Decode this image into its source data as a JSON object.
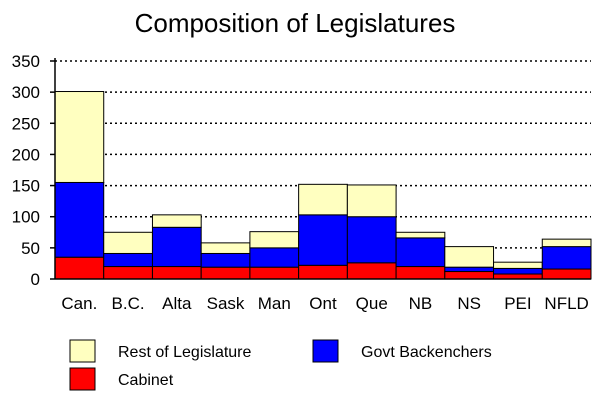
{
  "chart_data": {
    "type": "bar",
    "stacked": true,
    "title": "Composition of Legislatures",
    "xlabel": "",
    "ylabel": "",
    "categories": [
      "Can.",
      "B.C.",
      "Alta",
      "Sask",
      "Man",
      "Ont",
      "Que",
      "NB",
      "NS",
      "PEI",
      "NFLD"
    ],
    "series": [
      {
        "name": "Cabinet",
        "color": "#ff0000",
        "values": [
          35,
          20,
          20,
          19,
          19,
          22,
          26,
          20,
          12,
          8,
          16
        ]
      },
      {
        "name": "Govt Backenchers",
        "color": "#0000ff",
        "values": [
          120,
          21,
          63,
          22,
          31,
          81,
          74,
          46,
          7,
          9,
          36
        ]
      },
      {
        "name": "Rest of Legislature",
        "color": "#ffffc0",
        "values": [
          146,
          34,
          20,
          17,
          26,
          49,
          51,
          9,
          33,
          10,
          12
        ]
      }
    ],
    "ylim": [
      0,
      350
    ],
    "yticks": [
      0,
      50,
      100,
      150,
      200,
      250,
      300,
      350
    ],
    "grid": true,
    "grid_style": "dotted",
    "legend_position": "bottom"
  }
}
